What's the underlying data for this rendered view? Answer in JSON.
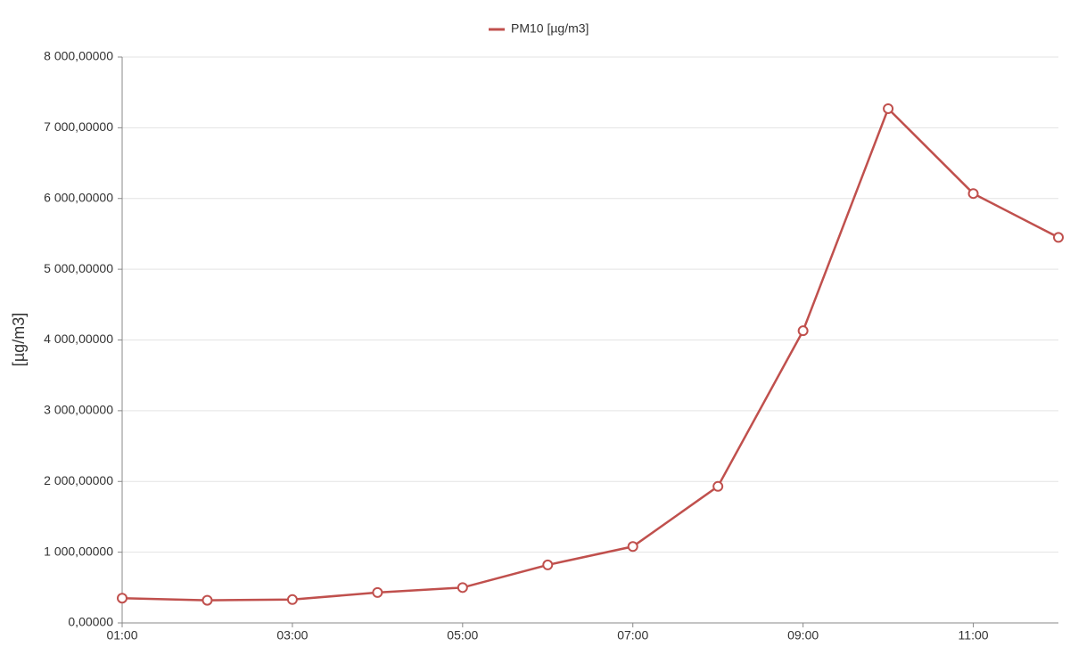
{
  "chart_data": {
    "type": "line",
    "y_label": "[µg/m3]",
    "categories": [
      "01:00",
      null,
      "03:00",
      null,
      "05:00",
      null,
      "07:00",
      null,
      "09:00",
      null,
      "11:00",
      null
    ],
    "series": [
      {
        "name": "PM10 [µg/m3]",
        "color": "#c0504d",
        "values": [
          350,
          320,
          330,
          430,
          500,
          820,
          1080,
          1930,
          4130,
          7270,
          6070,
          5450
        ]
      }
    ],
    "ylim": [
      0,
      8000
    ],
    "yticks": [
      {
        "value": 0,
        "label": "0,00000"
      },
      {
        "value": 1000,
        "label": "1 000,00000"
      },
      {
        "value": 2000,
        "label": "2 000,00000"
      },
      {
        "value": 3000,
        "label": "3 000,00000"
      },
      {
        "value": 4000,
        "label": "4 000,00000"
      },
      {
        "value": 5000,
        "label": "5 000,00000"
      },
      {
        "value": 6000,
        "label": "6 000,00000"
      },
      {
        "value": 7000,
        "label": "7 000,00000"
      },
      {
        "value": 8000,
        "label": "8 000,00000"
      }
    ],
    "grid": true,
    "legend": "top"
  }
}
